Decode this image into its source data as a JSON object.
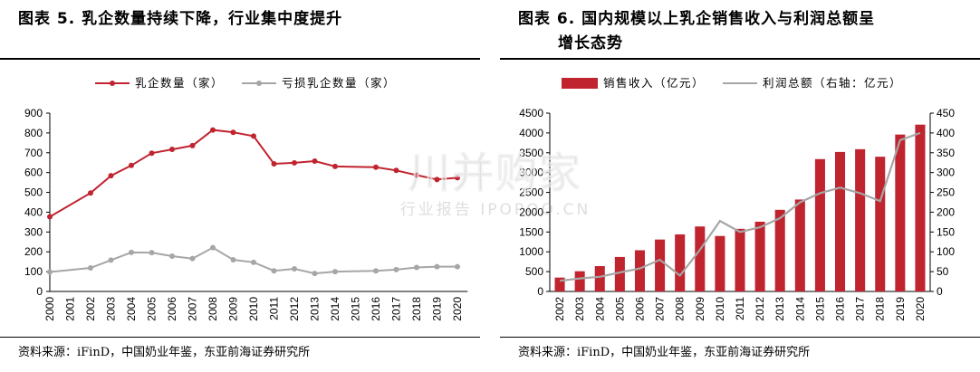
{
  "left": {
    "title": "图表 5.  乳企数量持续下降，行业集中度提升",
    "source": "资料来源：iFinD，中国奶业年鉴，东亚前海证券研究所"
  },
  "right": {
    "title_line1": "图表 6.  国内规模以上乳企销售收入与利润总额呈",
    "title_line2": "增长态势",
    "source": "资料来源：iFinD，中国奶业年鉴，东亚前海证券研究所"
  },
  "watermark": {
    "main": "川并购家",
    "sub": "行业报告 IPOPOO.CN"
  },
  "colors": {
    "red": "#c0242f",
    "gray": "#a6a6a6"
  },
  "chart_data": [
    {
      "type": "line",
      "x": [
        "2000",
        "2001",
        "2002",
        "2003",
        "2004",
        "2005",
        "2006",
        "2007",
        "2008",
        "2009",
        "2010",
        "2011",
        "2012",
        "2013",
        "2014",
        "2015",
        "2016",
        "2017",
        "2018",
        "2019",
        "2020"
      ],
      "ylim": [
        0,
        900
      ],
      "yticks": [
        0,
        100,
        200,
        300,
        400,
        500,
        600,
        700,
        800,
        900
      ],
      "legend_position": "top",
      "grid": false,
      "series": [
        {
          "name": "乳企数量（家）",
          "color": "#c0242f",
          "values": [
            377,
            null,
            497,
            584,
            636,
            698,
            717,
            736,
            815,
            803,
            784,
            644,
            649,
            658,
            631,
            null,
            627,
            611,
            587,
            565,
            574
          ]
        },
        {
          "name": "亏损乳企数量（家）",
          "color": "#a6a6a6",
          "values": [
            98,
            null,
            119,
            158,
            197,
            196,
            178,
            166,
            221,
            160,
            147,
            104,
            114,
            91,
            100,
            null,
            104,
            110,
            121,
            125,
            125
          ]
        }
      ]
    },
    {
      "type": "bar",
      "categories": [
        "2002",
        "2003",
        "2004",
        "2005",
        "2006",
        "2007",
        "2008",
        "2009",
        "2010",
        "2011",
        "2012",
        "2013",
        "2014",
        "2015",
        "2016",
        "2017",
        "2018",
        "2019",
        "2020"
      ],
      "ylim": [
        0,
        4500
      ],
      "yticks": [
        0,
        500,
        1000,
        1500,
        2000,
        2500,
        3000,
        3500,
        4000,
        4500
      ],
      "y2lim": [
        0,
        450
      ],
      "y2ticks": [
        0,
        50,
        100,
        150,
        200,
        250,
        300,
        350,
        400,
        450
      ],
      "legend_position": "top",
      "grid": false,
      "series": [
        {
          "name": "销售收入（亿元）",
          "type": "bar",
          "axis": "left",
          "color": "#c0242f",
          "values": [
            350,
            510,
            640,
            870,
            1040,
            1310,
            1440,
            1640,
            1400,
            1580,
            1760,
            2060,
            2320,
            3340,
            3520,
            3590,
            3400,
            3960,
            4210
          ]
        },
        {
          "name": "利润总额（右轴：亿元）",
          "type": "line",
          "axis": "right",
          "color": "#a6a6a6",
          "values": [
            27,
            33,
            37,
            48,
            58,
            80,
            40,
            105,
            178,
            150,
            162,
            185,
            225,
            248,
            262,
            248,
            228,
            382,
            400
          ]
        }
      ]
    }
  ]
}
